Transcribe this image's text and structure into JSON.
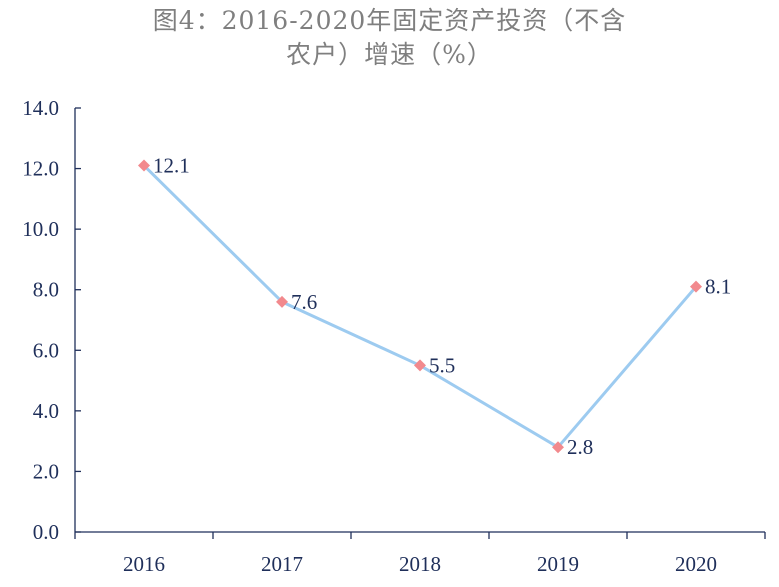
{
  "chart_data": {
    "type": "line",
    "title_line1": "图4：2016-2020年固定资产投资（不含",
    "title_line2": "农户）增速（%）",
    "categories": [
      "2016",
      "2017",
      "2018",
      "2019",
      "2020"
    ],
    "series": [
      {
        "values": [
          12.1,
          7.6,
          5.5,
          2.8,
          8.1
        ]
      }
    ],
    "data_labels": [
      "12.1",
      "7.6",
      "5.5",
      "2.8",
      "8.1"
    ],
    "y_ticks": [
      "0.0",
      "2.0",
      "4.0",
      "6.0",
      "8.0",
      "10.0",
      "12.0",
      "14.0"
    ],
    "ylim": [
      0,
      14
    ],
    "grid": false,
    "legend": "none",
    "colors": {
      "line": "#9dcbf0",
      "marker": "#f2898d",
      "axis": "#1f2f5a",
      "title": "#7f7f7f"
    }
  }
}
